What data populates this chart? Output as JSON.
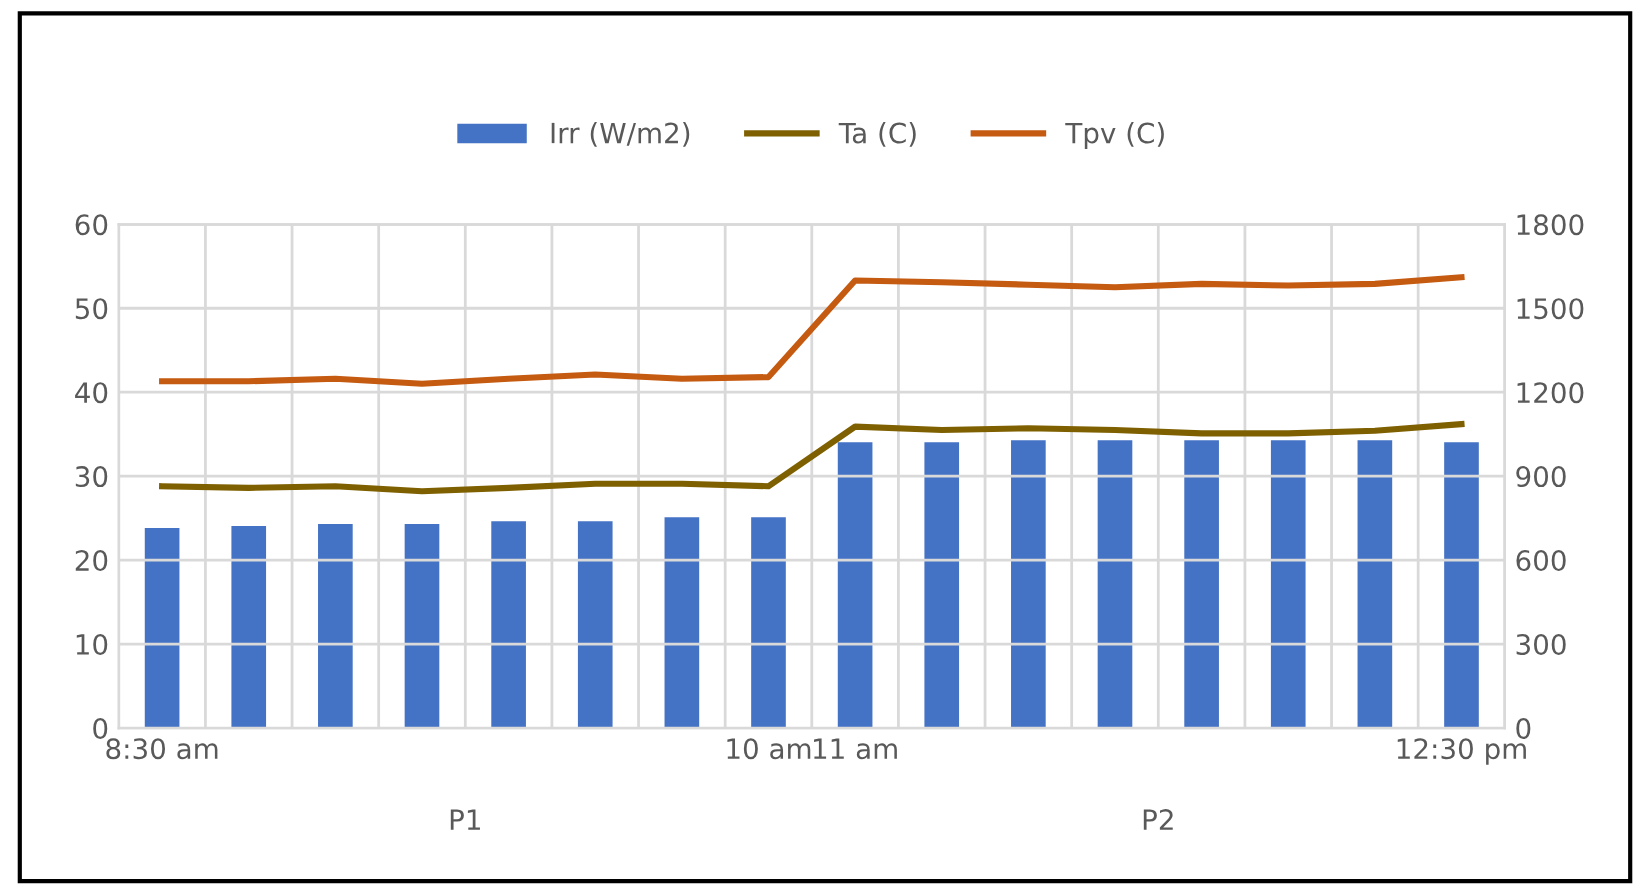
{
  "chart_data": {
    "type": "bar",
    "categories": [
      "8:30 am",
      null,
      null,
      null,
      null,
      null,
      null,
      "10 am",
      "11 am",
      null,
      null,
      null,
      null,
      null,
      null,
      "12:30 pm"
    ],
    "series": [
      {
        "name": "Irr (W/m2)",
        "axis": "y2",
        "color": "#4472c4",
        "values": [
          715,
          722,
          729,
          729,
          739,
          739,
          753,
          753,
          1021,
          1021,
          1028,
          1028,
          1028,
          1028,
          1028,
          1021
        ]
      },
      {
        "name": "Ta (C)",
        "type": "line",
        "color": "#7f6000",
        "values": [
          28.8,
          28.6,
          28.8,
          28.2,
          28.6,
          29.1,
          29.1,
          28.8,
          35.9,
          35.5,
          35.7,
          35.5,
          35.1,
          35.1,
          35.4,
          36.2
        ]
      },
      {
        "name": "Tpv (C)",
        "type": "line",
        "color": "#c55a11",
        "values": [
          41.3,
          41.3,
          41.6,
          41.0,
          41.6,
          42.1,
          41.6,
          41.8,
          53.3,
          53.1,
          52.8,
          52.5,
          52.9,
          52.7,
          52.9,
          53.7
        ]
      }
    ],
    "ylim": [
      0,
      60
    ],
    "yticks": [
      0,
      10,
      20,
      30,
      40,
      50,
      60
    ],
    "y2lim": [
      0,
      1800
    ],
    "y2ticks": [
      0,
      300,
      600,
      900,
      1200,
      1500,
      1800
    ],
    "grid": true,
    "legend": "top",
    "annotations": [
      "P1",
      "P2"
    ]
  }
}
